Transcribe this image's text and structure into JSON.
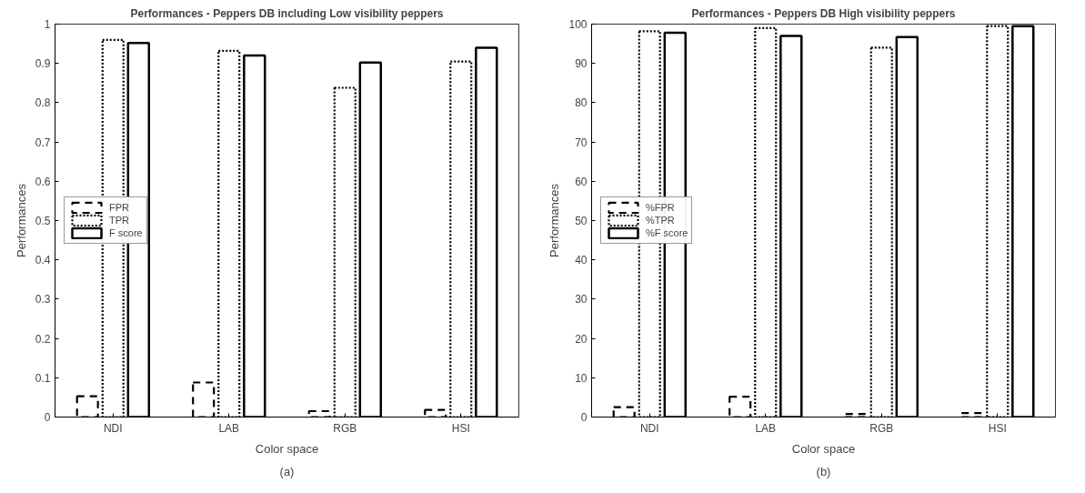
{
  "chart_data": [
    {
      "type": "bar",
      "title": "Performances - Peppers DB including Low visibility peppers",
      "xlabel": "Color space",
      "ylabel": "Performances",
      "categories": [
        "NDI",
        "LAB",
        "RGB",
        "HSI"
      ],
      "ylim": [
        0,
        1
      ],
      "yticks": [
        0,
        0.1,
        0.2,
        0.3,
        0.4,
        0.5,
        0.6,
        0.7,
        0.8,
        0.9,
        1
      ],
      "grid": false,
      "legend": "left",
      "annotations": [
        "(a)"
      ],
      "series": [
        {
          "name": "FPR",
          "color": "#000000",
          "line_style": "dashed",
          "values": [
            0.053,
            0.088,
            0.015,
            0.018
          ]
        },
        {
          "name": "TPR",
          "color": "#000000",
          "line_style": "dotted",
          "values": [
            0.96,
            0.932,
            0.838,
            0.905
          ]
        },
        {
          "name": "F score",
          "color": "#000000",
          "line_style": "solid",
          "values": [
            0.952,
            0.92,
            0.902,
            0.94
          ]
        }
      ]
    },
    {
      "type": "bar",
      "title": "Performances - Peppers DB High visibility peppers",
      "xlabel": "Color space",
      "ylabel": "Performances",
      "categories": [
        "NDI",
        "LAB",
        "RGB",
        "HSI"
      ],
      "ylim": [
        0,
        100
      ],
      "yticks": [
        0,
        10,
        20,
        30,
        40,
        50,
        60,
        70,
        80,
        90,
        100
      ],
      "grid": false,
      "legend": "left",
      "annotations": [
        "(b)"
      ],
      "series": [
        {
          "name": "%FPR",
          "color": "#000000",
          "line_style": "dashed",
          "values": [
            2.5,
            5.2,
            0.8,
            1.0
          ]
        },
        {
          "name": "%TPR",
          "color": "#000000",
          "line_style": "dotted",
          "values": [
            98.2,
            99,
            94,
            99.5
          ]
        },
        {
          "name": "%F score",
          "color": "#000000",
          "line_style": "solid",
          "values": [
            97.8,
            97,
            96.7,
            99.5
          ]
        }
      ]
    }
  ]
}
